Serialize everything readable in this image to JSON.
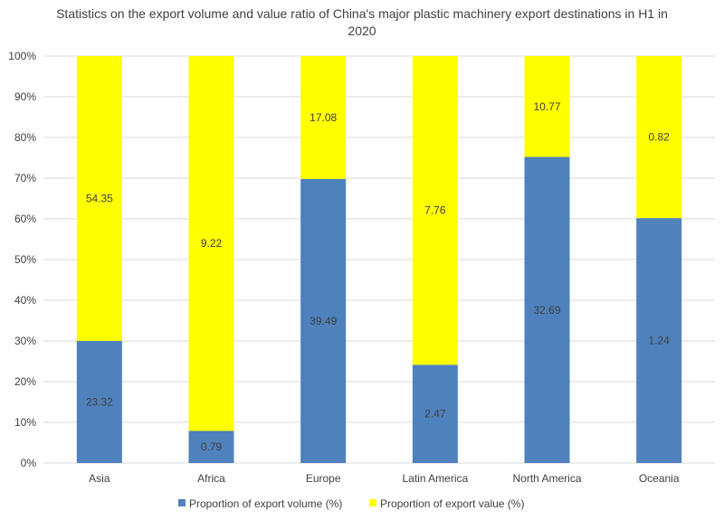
{
  "chart_data": {
    "type": "bar",
    "stacked": true,
    "percent_stacked": true,
    "title": "Statistics on the export volume and value ratio of China's major plastic machinery export destinations in H1 in 2020",
    "categories": [
      "Asia",
      "Africa",
      "Europe",
      "Latin America",
      "North America",
      "Oceania"
    ],
    "series": [
      {
        "name": "Proportion of export volume (%)",
        "color": "#4f81bd",
        "values": [
          23.32,
          0.79,
          39.49,
          2.47,
          32.69,
          1.24
        ]
      },
      {
        "name": "Proportion of export value (%)",
        "color": "#ffff00",
        "values": [
          54.35,
          9.22,
          17.08,
          7.76,
          10.77,
          0.82
        ]
      }
    ],
    "y_tick_labels": [
      "0%",
      "10%",
      "20%",
      "30%",
      "40%",
      "50%",
      "60%",
      "70%",
      "80%",
      "90%",
      "100%"
    ],
    "ylim": [
      0,
      100
    ],
    "grid": true,
    "legend_position": "bottom"
  }
}
